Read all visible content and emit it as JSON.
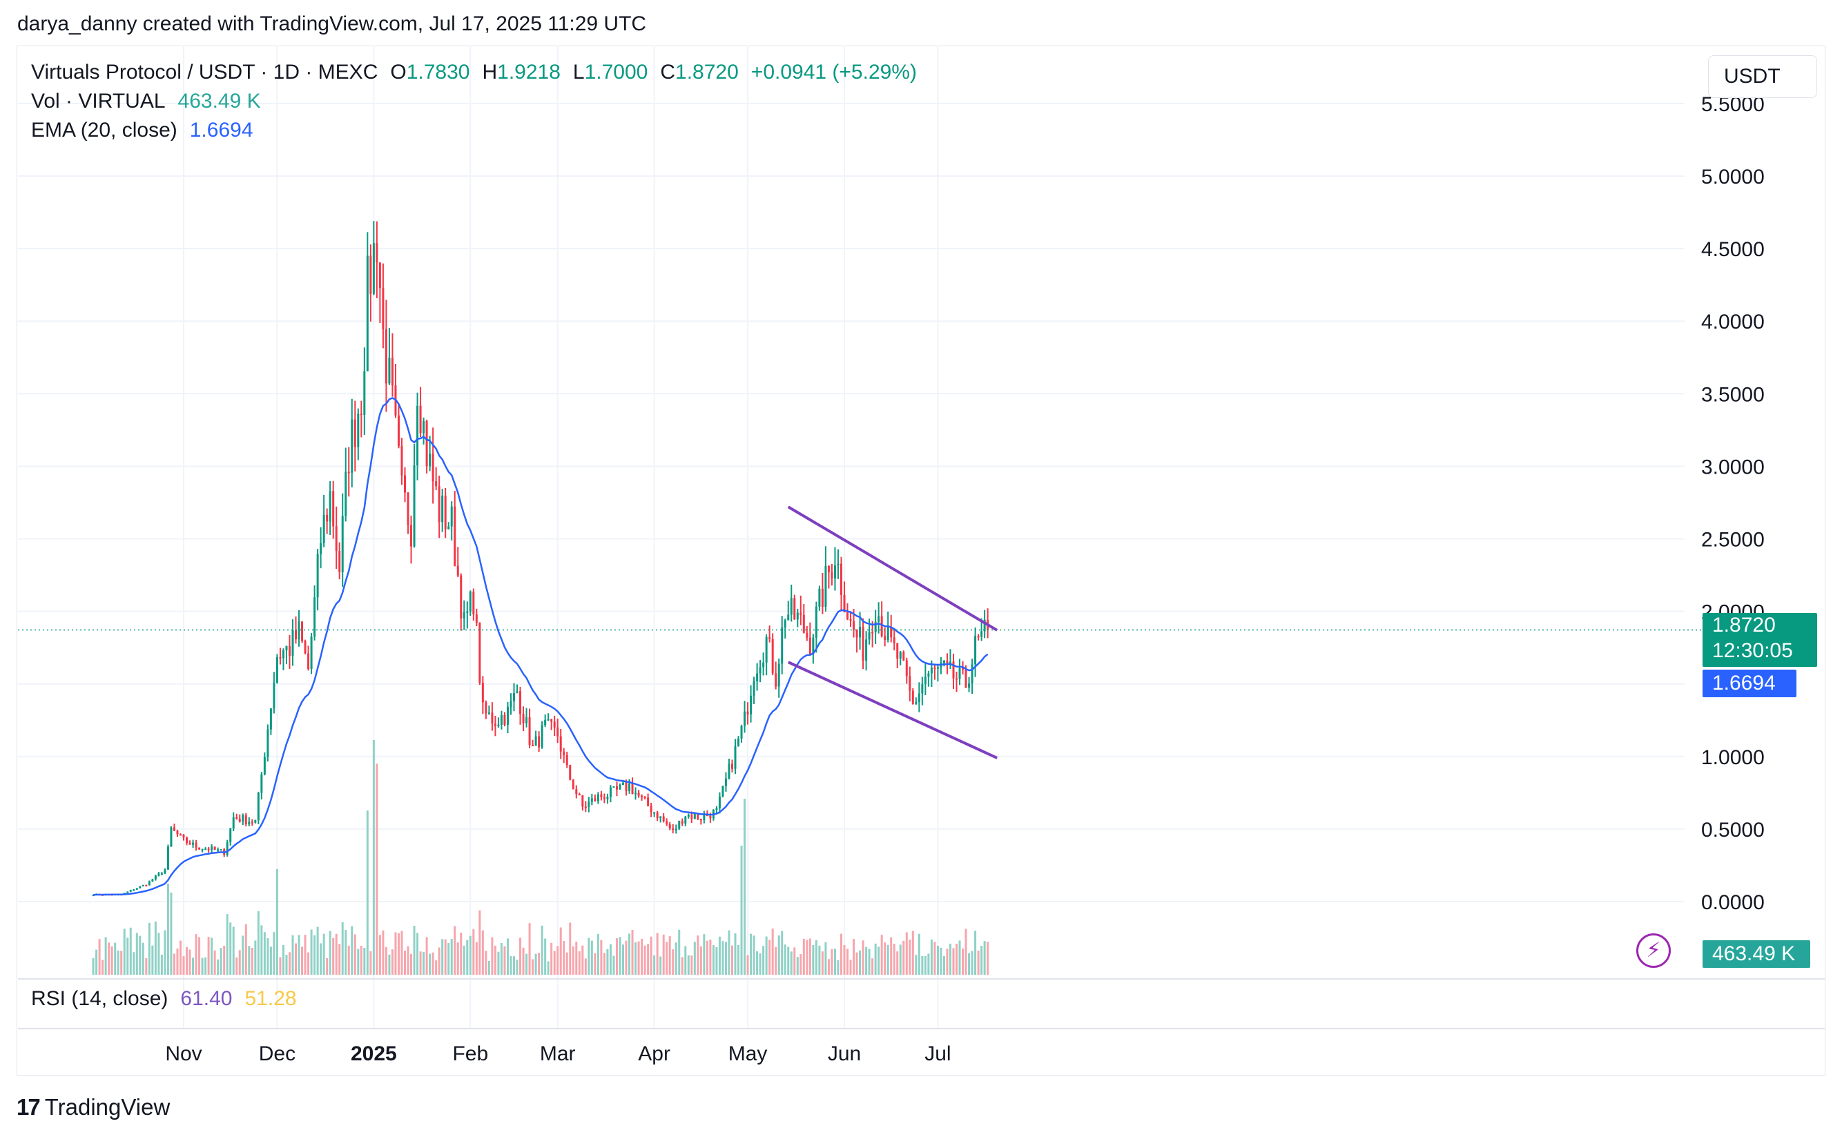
{
  "attribution": "darya_danny created with TradingView.com, Jul 17, 2025 11:29 UTC",
  "legend": {
    "symbol": "Virtuals Protocol / USDT · 1D · MEXC",
    "ohlc": {
      "o_key": "O",
      "o": "1.7830",
      "h_key": "H",
      "h": "1.9218",
      "l_key": "L",
      "l": "1.7000",
      "c_key": "C",
      "c": "1.8720",
      "change": "+0.0941 (+5.29%)"
    },
    "vol_label": "Vol · VIRTUAL",
    "vol_value": "463.49 K",
    "ema_label": "EMA (20, close)",
    "ema_value": "1.6694",
    "rsi_label": "RSI (14, close)",
    "rsi_value": "61.40",
    "rsi_ma_value": "51.28"
  },
  "currency_button": "USDT",
  "price_tags": {
    "last_price": "1.8720",
    "countdown": "12:30:05",
    "ema": "1.6694",
    "volume": "463.49 K"
  },
  "colors": {
    "up": "#089981",
    "down": "#f23645",
    "vol_up": "#8fd1c6",
    "vol_down": "#f7a5ac",
    "ema": "#2962ff",
    "trendline": "#7e3fbf",
    "grid": "#f0f3fa"
  },
  "icons": {
    "alert": "lightning-bolt-icon",
    "logo": "tradingview-logo-icon"
  },
  "branding": "TradingView",
  "chart_data": {
    "type": "candlestick",
    "title": "Virtuals Protocol / USDT · 1D · MEXC",
    "y_ticks": [
      "0.0000",
      "0.5000",
      "1.0000",
      "1.5000",
      "2.0000",
      "2.5000",
      "3.0000",
      "3.5000",
      "4.0000",
      "4.5000",
      "5.0000",
      "5.5000"
    ],
    "ylim": [
      0,
      5.5
    ],
    "x_ticks": [
      "Nov",
      "Dec",
      "2025",
      "Feb",
      "Mar",
      "Apr",
      "May",
      "Jun",
      "Jul"
    ],
    "x_tick_dates": [
      "2024-11-01",
      "2024-12-01",
      "2025-01-01",
      "2025-02-01",
      "2025-03-01",
      "2025-04-01",
      "2025-05-01",
      "2025-06-01",
      "2025-07-01"
    ],
    "date_range": [
      "2024-10-03",
      "2025-07-17"
    ],
    "last_close": 1.872,
    "ema_last": 1.6694,
    "close_anchors": [
      [
        "2024-10-03",
        0.05
      ],
      [
        "2024-10-12",
        0.05
      ],
      [
        "2024-10-20",
        0.12
      ],
      [
        "2024-10-26",
        0.22
      ],
      [
        "2024-10-28",
        0.5
      ],
      [
        "2024-11-01",
        0.42
      ],
      [
        "2024-11-05",
        0.38
      ],
      [
        "2024-11-10",
        0.36
      ],
      [
        "2024-11-14",
        0.34
      ],
      [
        "2024-11-17",
        0.58
      ],
      [
        "2024-11-24",
        0.55
      ],
      [
        "2024-11-28",
        1.2
      ],
      [
        "2024-12-01",
        1.7
      ],
      [
        "2024-12-05",
        1.75
      ],
      [
        "2024-12-08",
        1.85
      ],
      [
        "2024-12-11",
        1.6
      ],
      [
        "2024-12-15",
        2.5
      ],
      [
        "2024-12-18",
        2.8
      ],
      [
        "2024-12-21",
        2.3
      ],
      [
        "2024-12-24",
        3.1
      ],
      [
        "2024-12-28",
        3.5
      ],
      [
        "2024-12-30",
        4.2
      ],
      [
        "2025-01-02",
        4.6
      ],
      [
        "2025-01-04",
        3.9
      ],
      [
        "2025-01-07",
        3.4
      ],
      [
        "2025-01-10",
        2.8
      ],
      [
        "2025-01-13",
        2.6
      ],
      [
        "2025-01-15",
        3.6
      ],
      [
        "2025-01-18",
        3.1
      ],
      [
        "2025-01-22",
        2.7
      ],
      [
        "2025-01-26",
        2.6
      ],
      [
        "2025-01-30",
        1.9
      ],
      [
        "2025-02-02",
        2.1
      ],
      [
        "2025-02-05",
        1.3
      ],
      [
        "2025-02-09",
        1.25
      ],
      [
        "2025-02-13",
        1.3
      ],
      [
        "2025-02-16",
        1.45
      ],
      [
        "2025-02-21",
        1.05
      ],
      [
        "2025-02-25",
        1.2
      ],
      [
        "2025-03-01",
        1.15
      ],
      [
        "2025-03-04",
        0.9
      ],
      [
        "2025-03-09",
        0.65
      ],
      [
        "2025-03-14",
        0.72
      ],
      [
        "2025-03-19",
        0.75
      ],
      [
        "2025-03-24",
        0.8
      ],
      [
        "2025-03-28",
        0.7
      ],
      [
        "2025-04-02",
        0.6
      ],
      [
        "2025-04-07",
        0.48
      ],
      [
        "2025-04-11",
        0.6
      ],
      [
        "2025-04-16",
        0.58
      ],
      [
        "2025-04-21",
        0.62
      ],
      [
        "2025-04-25",
        0.9
      ],
      [
        "2025-04-30",
        1.25
      ],
      [
        "2025-05-03",
        1.6
      ],
      [
        "2025-05-07",
        1.8
      ],
      [
        "2025-05-10",
        1.55
      ],
      [
        "2025-05-13",
        2.0
      ],
      [
        "2025-05-17",
        1.95
      ],
      [
        "2025-05-21",
        1.8
      ],
      [
        "2025-05-26",
        2.2
      ],
      [
        "2025-05-29",
        2.4
      ],
      [
        "2025-06-03",
        1.9
      ],
      [
        "2025-06-07",
        1.75
      ],
      [
        "2025-06-11",
        2.05
      ],
      [
        "2025-06-15",
        1.8
      ],
      [
        "2025-06-19",
        1.65
      ],
      [
        "2025-06-23",
        1.35
      ],
      [
        "2025-06-27",
        1.55
      ],
      [
        "2025-07-02",
        1.6
      ],
      [
        "2025-07-06",
        1.55
      ],
      [
        "2025-07-10",
        1.5
      ],
      [
        "2025-07-13",
        1.75
      ],
      [
        "2025-07-17",
        1.872
      ]
    ],
    "volume_spikes": [
      [
        "2024-10-28",
        0.35
      ],
      [
        "2024-12-01",
        0.45
      ],
      [
        "2024-12-30",
        0.7
      ],
      [
        "2025-01-01",
        1.0
      ],
      [
        "2025-01-02",
        0.9
      ],
      [
        "2025-04-29",
        0.55
      ],
      [
        "2025-04-30",
        0.75
      ]
    ],
    "trendlines": [
      {
        "from": [
          "2025-05-14",
          2.72
        ],
        "to": [
          "2025-07-20",
          1.87
        ]
      },
      {
        "from": [
          "2025-05-14",
          1.65
        ],
        "to": [
          "2025-07-20",
          0.99
        ]
      }
    ],
    "indicators": [
      {
        "name": "EMA (20, close)",
        "last": 1.6694
      },
      {
        "name": "RSI (14, close)",
        "value": 61.4,
        "ma": 51.28
      }
    ]
  }
}
